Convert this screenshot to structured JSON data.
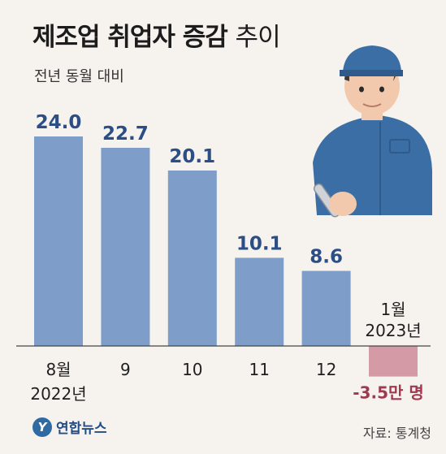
{
  "title": {
    "main": "제조업 취업자 증감",
    "light": "추이"
  },
  "subtitle": "전년 동월 대비",
  "source": "자료: 통계청",
  "logo": {
    "mark": "Y",
    "text": "연합뉴스"
  },
  "colors": {
    "positive_bar": "#7e9dc8",
    "negative_bar": "#d49aa5",
    "positive_label": "#2a4e85",
    "negative_label": "#a0394f"
  },
  "chart_data": {
    "type": "bar",
    "categories": [
      "8월",
      "9",
      "10",
      "11",
      "12",
      "1월"
    ],
    "year_labels": [
      "2022년",
      "",
      "",
      "",
      "",
      "2023년"
    ],
    "values": [
      24.0,
      22.7,
      20.1,
      10.1,
      8.6,
      -3.5
    ],
    "value_labels": [
      "24.0",
      "22.7",
      "20.1",
      "10.1",
      "8.6",
      "-3.5만 명"
    ],
    "ylim": [
      -4,
      25
    ],
    "grid": false
  }
}
